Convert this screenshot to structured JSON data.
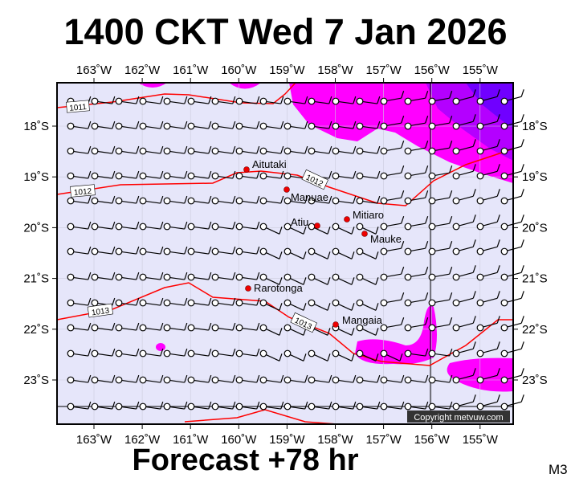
{
  "header": {
    "title": "1400 CKT Wed 7 Jan 2026"
  },
  "footer": {
    "forecast": "Forecast +78 hr",
    "model_code": "M3",
    "copyright": "Copyright metvuw.com"
  },
  "axes": {
    "lon_labels": [
      "163˚W",
      "162˚W",
      "161˚W",
      "160˚W",
      "159˚W",
      "158˚W",
      "157˚W",
      "156˚W",
      "155˚W"
    ],
    "lat_labels": [
      "18˚S",
      "19˚S",
      "20˚S",
      "21˚S",
      "22˚S",
      "23˚S"
    ]
  },
  "isobars": [
    {
      "label": "1011"
    },
    {
      "label": "1012"
    },
    {
      "label": "1012"
    },
    {
      "label": "1013"
    },
    {
      "label": "1013"
    }
  ],
  "islands": [
    {
      "name": "Aitutaki"
    },
    {
      "name": "Manuae"
    },
    {
      "name": "Atiu"
    },
    {
      "name": "Mitiaro"
    },
    {
      "name": "Mauke"
    },
    {
      "name": "Rarotonga"
    },
    {
      "name": "Mangaia"
    }
  ],
  "colors": {
    "ocean": "#e6e6fa",
    "rain_light": "#ff00ff",
    "rain_mid": "#b400ff",
    "rain_heavy": "#7000ff",
    "isobar": "#ff0000"
  }
}
